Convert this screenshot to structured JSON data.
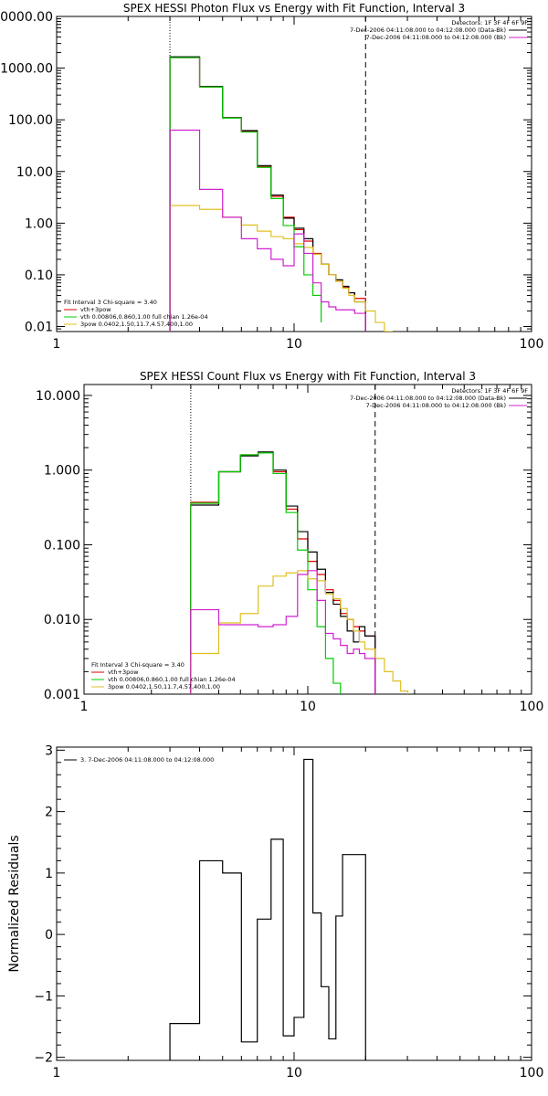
{
  "chart_data": [
    {
      "type": "line",
      "title": "SPEX HESSI Photon Flux vs Energy with Fit Function, Interval 3",
      "xlabel": "",
      "ylabel": "",
      "xscale": "log",
      "yscale": "log",
      "xlim": [
        1,
        100
      ],
      "ylim": [
        0.008,
        10000
      ],
      "x_ticks": [
        1,
        10,
        100
      ],
      "x_tick_labels": [
        "1",
        "10",
        "100"
      ],
      "y_ticks": [
        0.01,
        0.1,
        1,
        10,
        100,
        1000,
        10000
      ],
      "y_tick_labels": [
        "0.01",
        "0.10",
        "1.00",
        "10.00",
        "100.00",
        "1000.00",
        "10000.00"
      ],
      "vlines": [
        {
          "x": 3.0,
          "style": "dotted"
        },
        {
          "x": 20.0,
          "style": "dashed"
        }
      ],
      "legend_right": [
        {
          "text": "Detectors: 1F 3F 4F 6F 9F",
          "color": ""
        },
        {
          "text": "7-Dec-2006 04:11:08.000 to 04:12:08.000 (Data-Bk)",
          "color": "#000000"
        },
        {
          "text": "7-Dec-2006 04:11:08.000 to 04:12:08.000 (Bk)",
          "color": "#d020d0"
        }
      ],
      "legend_left": [
        {
          "text": "Fit Interval  3    Chi-square = 3.40",
          "color": ""
        },
        {
          "text": "vth+3pow",
          "color": "#dd0000"
        },
        {
          "text": "vth 0.00806,0.860,1.00   full chian 1.26e-04",
          "color": "#00cc00"
        },
        {
          "text": "3pow 0.0402,1.50,11.7,4.57,400,1.00",
          "color": "#e0c020"
        }
      ],
      "series": [
        {
          "name": "vth+3pow",
          "color": "#dd0000",
          "edges": [
            3,
            4,
            5,
            6,
            7,
            8,
            9,
            10,
            11,
            12,
            13,
            14,
            15,
            16,
            17,
            18,
            20
          ],
          "values": [
            1600,
            430,
            110,
            60,
            12.5,
            3.3,
            1.3,
            0.75,
            0.45,
            0.26,
            0.16,
            0.1,
            0.075,
            0.058,
            0.045,
            0.035
          ]
        },
        {
          "name": "Data-Bk",
          "color": "#000000",
          "edges": [
            3,
            4,
            5,
            6,
            7,
            8,
            9,
            10,
            11,
            12,
            13,
            14,
            15,
            16,
            17,
            18,
            20
          ],
          "values": [
            1650,
            440,
            110,
            62,
            13,
            3.5,
            1.25,
            0.8,
            0.5,
            0.25,
            0.16,
            0.1,
            0.08,
            0.06,
            0.045,
            0.03
          ]
        },
        {
          "name": "vth",
          "color": "#00cc00",
          "edges": [
            3,
            4,
            5,
            6,
            7,
            8,
            9,
            10,
            11,
            12,
            13
          ],
          "values": [
            1600,
            430,
            108,
            58,
            12,
            3,
            0.9,
            0.35,
            0.1,
            0.04,
            0.012
          ]
        },
        {
          "name": "3pow",
          "color": "#e0c020",
          "edges": [
            3,
            4,
            5,
            6,
            7,
            8,
            9,
            10,
            11,
            12,
            13,
            14,
            15,
            16,
            17,
            18,
            20,
            22,
            24,
            26
          ],
          "values": [
            2.2,
            1.85,
            1.3,
            0.92,
            0.7,
            0.55,
            0.5,
            0.4,
            0.34,
            0.25,
            0.16,
            0.1,
            0.075,
            0.055,
            0.04,
            0.03,
            0.02,
            0.012,
            0.008
          ]
        },
        {
          "name": "Bk",
          "color": "#d020d0",
          "edges": [
            3,
            4,
            5,
            6,
            7,
            8,
            9,
            10,
            11,
            12,
            13,
            14,
            15,
            16,
            17,
            18,
            20
          ],
          "values": [
            63,
            4.5,
            1.3,
            0.5,
            0.32,
            0.2,
            0.15,
            0.62,
            0.26,
            0.07,
            0.03,
            0.024,
            0.021,
            0.021,
            0.021,
            0.018
          ]
        }
      ]
    },
    {
      "type": "line",
      "title": "SPEX HESSI Count Flux vs Energy with Fit Function, Interval 3",
      "xlabel": "",
      "ylabel": "",
      "xscale": "log",
      "yscale": "log",
      "xlim": [
        1,
        100
      ],
      "ylim": [
        0.001,
        14
      ],
      "x_ticks": [
        1,
        10,
        100
      ],
      "x_tick_labels": [
        "1",
        "10",
        "100"
      ],
      "y_ticks": [
        0.001,
        0.01,
        0.1,
        1,
        10
      ],
      "y_tick_labels": [
        "0.001",
        "0.010",
        "0.100",
        "1.000",
        "10.000"
      ],
      "vlines": [
        {
          "x": 3.0,
          "style": "dotted"
        },
        {
          "x": 20.0,
          "style": "dashed"
        }
      ],
      "legend_right": [
        {
          "text": "Detectors: 1F 3F 4F 6F 9F",
          "color": ""
        },
        {
          "text": "7-Dec-2006 04:11:08.000 to 04:12:08.000 (Data-Bk)",
          "color": "#000000"
        },
        {
          "text": "7-Dec-2006 04:11:08.000 to 04:12:08.000 (Bk)",
          "color": "#d020d0"
        }
      ],
      "legend_left": [
        {
          "text": "Fit Interval  3    Chi-square = 3.40",
          "color": ""
        },
        {
          "text": "vth+3pow",
          "color": "#dd0000"
        },
        {
          "text": "vth 0.00806,0.860,1.00   full chian 1.26e-04",
          "color": "#00cc00"
        },
        {
          "text": "3pow 0.0402,1.50,11.7,4.57,400,1.00",
          "color": "#e0c020"
        }
      ],
      "series": [
        {
          "name": "vth+3pow",
          "color": "#dd0000",
          "edges": [
            3,
            4,
            5,
            6,
            7,
            8,
            9,
            10,
            11,
            12,
            13,
            14,
            15,
            16,
            17,
            18,
            20
          ],
          "values": [
            0.37,
            0.95,
            1.6,
            1.7,
            0.95,
            0.3,
            0.12,
            0.06,
            0.04,
            0.025,
            0.018,
            0.012,
            0.01,
            0.008,
            0.007,
            0.006
          ]
        },
        {
          "name": "Data-Bk",
          "color": "#000000",
          "edges": [
            3,
            4,
            5,
            6,
            7,
            8,
            9,
            10,
            11,
            12,
            13,
            14,
            15,
            16,
            17,
            18,
            20
          ],
          "values": [
            0.34,
            0.95,
            1.55,
            1.75,
            1.0,
            0.33,
            0.15,
            0.08,
            0.047,
            0.023,
            0.016,
            0.011,
            0.007,
            0.005,
            0.008,
            0.006
          ]
        },
        {
          "name": "vth",
          "color": "#00cc00",
          "edges": [
            3,
            4,
            5,
            6,
            7,
            8,
            9,
            10,
            11,
            12,
            13,
            14
          ],
          "values": [
            0.36,
            0.95,
            1.6,
            1.7,
            0.9,
            0.27,
            0.085,
            0.025,
            0.008,
            0.003,
            0.0014
          ]
        },
        {
          "name": "3pow",
          "color": "#e0c020",
          "edges": [
            3,
            4,
            5,
            6,
            7,
            8,
            9,
            10,
            11,
            12,
            13,
            14,
            15,
            16,
            17,
            18,
            20,
            22,
            24,
            26,
            28
          ],
          "values": [
            0.0035,
            0.009,
            0.012,
            0.028,
            0.038,
            0.042,
            0.045,
            0.035,
            0.033,
            0.022,
            0.019,
            0.014,
            0.01,
            0.007,
            0.005,
            0.004,
            0.003,
            0.002,
            0.0015,
            0.0011
          ]
        },
        {
          "name": "Bk",
          "color": "#d020d0",
          "edges": [
            3,
            4,
            5,
            6,
            7,
            8,
            9,
            10,
            11,
            12,
            13,
            14,
            15,
            16,
            17,
            18,
            20
          ],
          "values": [
            0.0135,
            0.0085,
            0.0085,
            0.008,
            0.0085,
            0.011,
            0.04,
            0.045,
            0.018,
            0.0065,
            0.0055,
            0.0045,
            0.0035,
            0.004,
            0.0035,
            0.003
          ]
        }
      ]
    },
    {
      "type": "line",
      "title": "",
      "xlabel": "",
      "ylabel": "Normalized Residuals",
      "xscale": "log",
      "yscale": "linear",
      "xlim": [
        1,
        100
      ],
      "ylim": [
        -2.05,
        3.05
      ],
      "x_ticks": [
        1,
        10,
        100
      ],
      "x_tick_labels": [
        "1",
        "10",
        "100"
      ],
      "y_ticks": [
        -2,
        -1,
        0,
        1,
        2,
        3
      ],
      "y_tick_labels": [
        "−2",
        "−1",
        "0",
        "1",
        "2",
        "3"
      ],
      "legend_left": [
        {
          "text": "3.  7-Dec-2006 04:11:08.000 to 04:12:08.000",
          "color": "#000000"
        }
      ],
      "series": [
        {
          "name": "",
          "color": "#000000",
          "edges": [
            3,
            4,
            5,
            6,
            7,
            8,
            9,
            10,
            11,
            12,
            13,
            14,
            15,
            16,
            17,
            18,
            20
          ],
          "values": [
            -1.45,
            1.2,
            1.0,
            -1.75,
            0.25,
            1.55,
            -1.65,
            -1.35,
            2.85,
            0.35,
            -0.85,
            -1.7,
            0.3,
            1.3,
            1.3,
            1.3
          ]
        }
      ]
    }
  ]
}
